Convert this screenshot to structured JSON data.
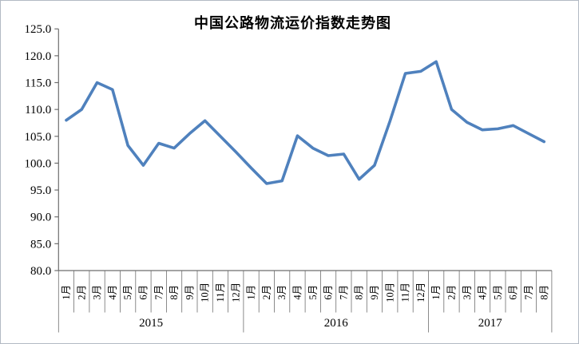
{
  "chart_data": {
    "type": "line",
    "title": "中国公路物流运价指数走势图",
    "xlabel": "",
    "ylabel": "",
    "ylim": [
      80.0,
      125.0
    ],
    "ytick_step": 5.0,
    "ytick_labels": [
      "80.0",
      "85.0",
      "90.0",
      "95.0",
      "100.0",
      "105.0",
      "110.0",
      "115.0",
      "120.0",
      "125.0"
    ],
    "grid": false,
    "legend_position": "none",
    "line_color": "#4F81BD",
    "axis_color": "#6e6e6e",
    "categories": [
      "1月",
      "2月",
      "3月",
      "4月",
      "5月",
      "6月",
      "7月",
      "8月",
      "9月",
      "10月",
      "11月",
      "12月",
      "1月",
      "2月",
      "3月",
      "4月",
      "5月",
      "6月",
      "7月",
      "8月",
      "9月",
      "10月",
      "11月",
      "12月",
      "1月",
      "2月",
      "3月",
      "4月",
      "5月",
      "6月",
      "7月",
      "8月"
    ],
    "year_groups": [
      {
        "year": "2015",
        "count": 12
      },
      {
        "year": "2016",
        "count": 12
      },
      {
        "year": "2017",
        "count": 8
      }
    ],
    "series": [
      {
        "name": "中国公路物流运价指数",
        "values": [
          108.0,
          110.0,
          115.0,
          113.7,
          103.3,
          99.6,
          103.7,
          102.8,
          105.5,
          107.9,
          105.0,
          102.1,
          99.1,
          96.2,
          96.7,
          105.1,
          102.8,
          101.4,
          101.7,
          97.0,
          99.6,
          107.8,
          116.7,
          117.1,
          118.9,
          110.0,
          107.6,
          106.2,
          106.4,
          107.0,
          105.5,
          104.0
        ]
      }
    ]
  }
}
